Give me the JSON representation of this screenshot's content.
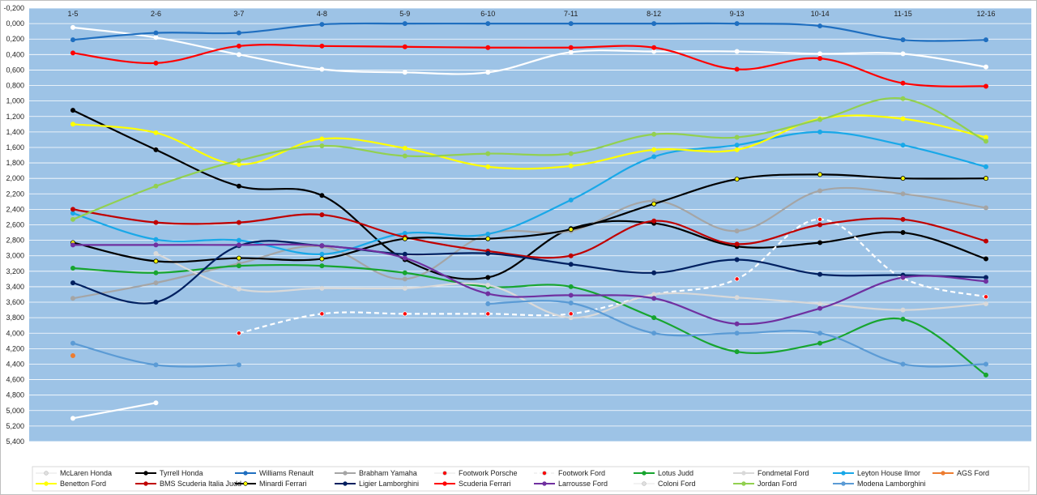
{
  "chart_data": {
    "type": "line",
    "title": "",
    "xlabel": "",
    "ylabel": "",
    "ylim": [
      -0.2,
      5.4
    ],
    "y_inverted": true,
    "y_tick_labels": [
      "-0,200",
      "0,000",
      "0,200",
      "0,400",
      "0,600",
      "0,800",
      "1,000",
      "1,200",
      "1,400",
      "1,600",
      "1,800",
      "2,000",
      "2,200",
      "2,400",
      "2,600",
      "2,800",
      "3,000",
      "3,200",
      "3,400",
      "3,600",
      "3,800",
      "4,000",
      "4,200",
      "4,400",
      "4,600",
      "4,800",
      "5,000",
      "5,200",
      "5,400"
    ],
    "categories": [
      "1-5",
      "2-6",
      "3-7",
      "4-8",
      "5-9",
      "6-10",
      "7-11",
      "8-12",
      "9-13",
      "10-14",
      "11-15",
      "12-16"
    ],
    "grid": true,
    "plot_background": "#9dc3e6",
    "legend_position": "bottom",
    "series": [
      {
        "name": "McLaren Honda",
        "color": "#ffffff",
        "values": [
          0.05,
          0.18,
          0.4,
          0.59,
          0.63,
          0.63,
          0.37,
          0.36,
          0.36,
          0.39,
          0.39,
          0.56
        ],
        "extra": [
          {
            "i": 0,
            "v": 5.1
          },
          {
            "i": 1,
            "v": 4.9
          }
        ]
      },
      {
        "name": "Tyrrell Honda",
        "color": "#000000",
        "values": [
          1.12,
          1.63,
          2.1,
          2.22,
          3.05,
          3.28,
          2.65,
          2.58,
          2.88,
          2.83,
          2.7,
          3.04
        ]
      },
      {
        "name": "Williams Renault",
        "color": "#1f6fc0",
        "values": [
          0.21,
          0.12,
          0.12,
          0.01,
          0.0,
          0.0,
          0.0,
          0.0,
          0.0,
          0.03,
          0.21,
          0.21
        ]
      },
      {
        "name": "Brabham Yamaha",
        "color": "#a5a5a5",
        "values": [
          3.55,
          3.35,
          3.1,
          2.88,
          3.3,
          2.72,
          2.68,
          2.29,
          2.68,
          2.16,
          2.2,
          2.38
        ]
      },
      {
        "name": "Footwork Porsche",
        "color": "#ffffff",
        "dashed": false,
        "markerColor": "#ff0000",
        "values": [
          null,
          null,
          null,
          null,
          null,
          null,
          null,
          null,
          null,
          null,
          null,
          null
        ]
      },
      {
        "name": "Footwork Ford",
        "color": "#ffffff",
        "dashed": true,
        "markerColor": "#ff0000",
        "values": [
          null,
          null,
          4.0,
          3.75,
          3.75,
          3.75,
          3.75,
          3.5,
          3.3,
          2.53,
          3.29,
          3.53
        ]
      },
      {
        "name": "Lotus Judd",
        "color": "#17a52f",
        "values": [
          3.16,
          3.22,
          3.13,
          3.13,
          3.22,
          3.4,
          3.4,
          3.8,
          4.24,
          4.13,
          3.82,
          4.54
        ]
      },
      {
        "name": "Fondmetal Ford",
        "color": "#d9d9d9",
        "values": [
          null,
          2.97,
          3.43,
          3.42,
          3.42,
          3.38,
          3.8,
          3.5,
          3.54,
          3.62,
          3.7,
          3.62
        ]
      },
      {
        "name": "Leyton House Ilmor",
        "color": "#19a8e8",
        "values": [
          2.45,
          2.79,
          2.8,
          2.98,
          2.71,
          2.72,
          2.28,
          1.72,
          1.57,
          1.4,
          1.57,
          1.85
        ]
      },
      {
        "name": "AGS Ford",
        "color": "#ed7d31",
        "values": [
          4.29,
          null,
          null,
          null,
          null,
          null,
          null,
          null,
          null,
          null,
          null,
          null
        ]
      },
      {
        "name": "Benetton Ford",
        "color": "#ffff00",
        "values": [
          1.3,
          1.41,
          1.82,
          1.49,
          1.61,
          1.85,
          1.84,
          1.63,
          1.63,
          1.23,
          1.23,
          1.47
        ]
      },
      {
        "name": "BMS Scuderia Italia Judd",
        "color": "#c00000",
        "values": [
          2.4,
          2.57,
          2.57,
          2.47,
          2.76,
          2.94,
          3.0,
          2.55,
          2.85,
          2.6,
          2.53,
          2.81
        ]
      },
      {
        "name": "Minardi Ferrari",
        "color": "#000000",
        "markerColor": "#ffff00",
        "values": [
          2.83,
          3.07,
          3.03,
          3.04,
          2.78,
          2.78,
          2.66,
          2.33,
          2.01,
          1.95,
          2.0,
          2.0
        ]
      },
      {
        "name": "Ligier Lamborghini",
        "color": "#002060",
        "values": [
          3.35,
          3.6,
          2.87,
          2.87,
          2.98,
          2.97,
          3.11,
          3.22,
          3.05,
          3.24,
          3.25,
          3.28
        ]
      },
      {
        "name": "Scuderia Ferrari",
        "color": "#ff0000",
        "values": [
          0.38,
          0.51,
          0.29,
          0.29,
          0.3,
          0.31,
          0.31,
          0.31,
          0.59,
          0.45,
          0.77,
          0.81
        ]
      },
      {
        "name": "Larrousse Ford",
        "color": "#7030a0",
        "values": [
          2.86,
          2.86,
          2.86,
          2.87,
          3.03,
          3.49,
          3.51,
          3.55,
          3.88,
          3.68,
          3.28,
          3.33
        ]
      },
      {
        "name": "Coloni Ford",
        "color": "#ffffff",
        "values": [
          null,
          null,
          null,
          null,
          null,
          null,
          null,
          null,
          null,
          null,
          null,
          null
        ]
      },
      {
        "name": "Jordan Ford",
        "color": "#92d050",
        "values": [
          2.53,
          2.1,
          1.77,
          1.58,
          1.71,
          1.68,
          1.68,
          1.43,
          1.47,
          1.24,
          0.97,
          1.52
        ]
      },
      {
        "name": "Modena Lamborghini",
        "color": "#5b9bd5",
        "values": [
          4.13,
          4.41,
          4.41,
          null,
          null,
          3.62,
          3.61,
          4.0,
          4.0,
          4.0,
          4.4,
          4.4
        ]
      }
    ]
  }
}
